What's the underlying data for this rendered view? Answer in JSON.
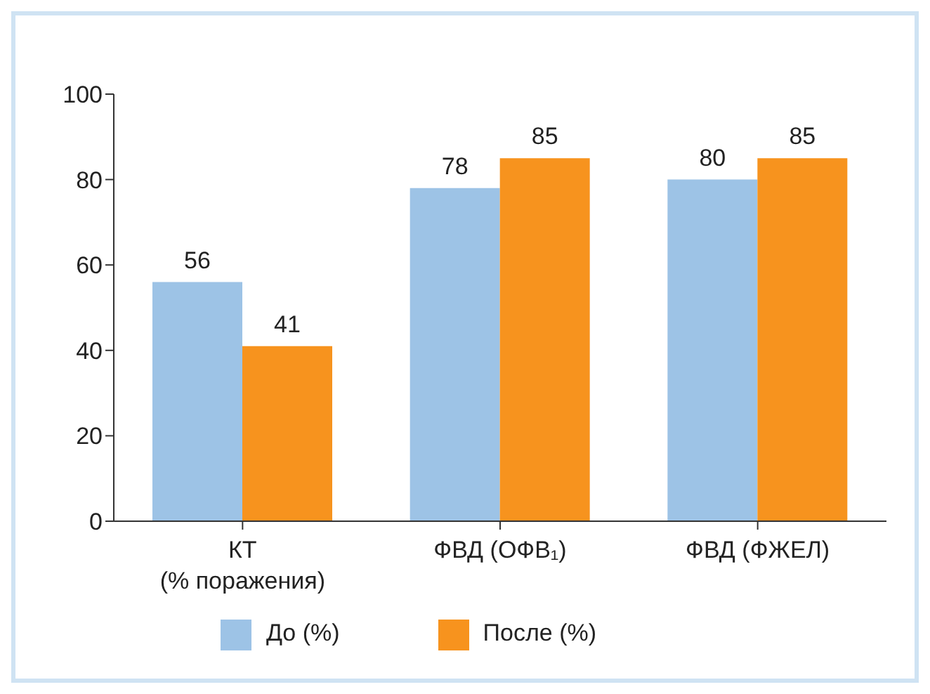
{
  "chart_data": {
    "type": "bar",
    "categories": [
      "КТ\n(% поражения)",
      "ФВД (ОФВ₁)",
      "ФВД (ФЖЕЛ)"
    ],
    "series": [
      {
        "name": "До (%)",
        "color": "#9dc3e6",
        "values": [
          56,
          78,
          80
        ]
      },
      {
        "name": "После (%)",
        "color": "#f7931e",
        "values": [
          41,
          85,
          85
        ]
      }
    ],
    "ylim": [
      0,
      100
    ],
    "yticks": [
      0,
      20,
      40,
      60,
      80,
      100
    ],
    "grid": false,
    "legend": "bottom",
    "data_labels": true
  }
}
